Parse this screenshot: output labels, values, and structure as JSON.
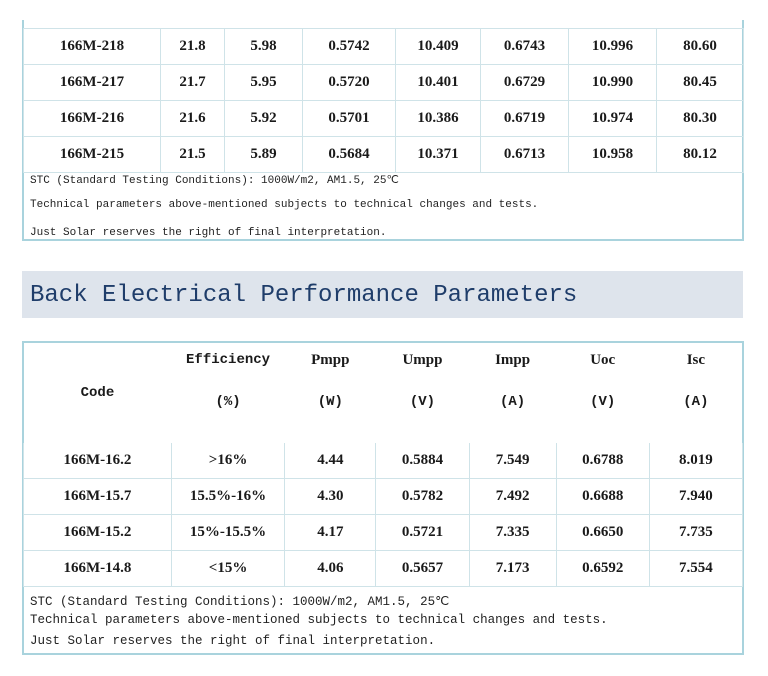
{
  "front_table": {
    "rows": [
      [
        "166M-218",
        "21.8",
        "5.98",
        "0.5742",
        "10.409",
        "0.6743",
        "10.996",
        "80.60"
      ],
      [
        "166M-217",
        "21.7",
        "5.95",
        "0.5720",
        "10.401",
        "0.6729",
        "10.990",
        "80.45"
      ],
      [
        "166M-216",
        "21.6",
        "5.92",
        "0.5701",
        "10.386",
        "0.6719",
        "10.974",
        "80.30"
      ],
      [
        "166M-215",
        "21.5",
        "5.89",
        "0.5684",
        "10.371",
        "0.6713",
        "10.958",
        "80.12"
      ]
    ],
    "notes": [
      "STC (Standard Testing Conditions): 1000W/m2, AM1.5, 25℃",
      "Technical parameters above-mentioned subjects to technical changes and tests.",
      "Just Solar reserves the right of final interpretation."
    ]
  },
  "section_heading": "Back Electrical Performance Parameters",
  "back_table": {
    "code_header": "Code",
    "headers": [
      {
        "name": "Efficiency",
        "unit": "(%)"
      },
      {
        "name": "Pmpp",
        "unit": "(W)"
      },
      {
        "name": "Umpp",
        "unit": "(V)"
      },
      {
        "name": "Impp",
        "unit": "(A)"
      },
      {
        "name": "Uoc",
        "unit": "(V)"
      },
      {
        "name": "Isc",
        "unit": "(A)"
      }
    ],
    "rows": [
      [
        "166M-16.2",
        ">16%",
        "4.44",
        "0.5884",
        "7.549",
        "0.6788",
        "8.019"
      ],
      [
        "166M-15.7",
        "15.5%-16%",
        "4.30",
        "0.5782",
        "7.492",
        "0.6688",
        "7.940"
      ],
      [
        "166M-15.2",
        "15%-15.5%",
        "4.17",
        "0.5721",
        "7.335",
        "0.6650",
        "7.735"
      ],
      [
        "166M-14.8",
        "<15%",
        "4.06",
        "0.5657",
        "7.173",
        "0.6592",
        "7.554"
      ]
    ],
    "notes": [
      "STC (Standard Testing Conditions): 1000W/m2, AM1.5, 25℃",
      "Technical parameters above-mentioned subjects to technical changes and tests.",
      "Just Solar reserves the right of final interpretation."
    ]
  }
}
